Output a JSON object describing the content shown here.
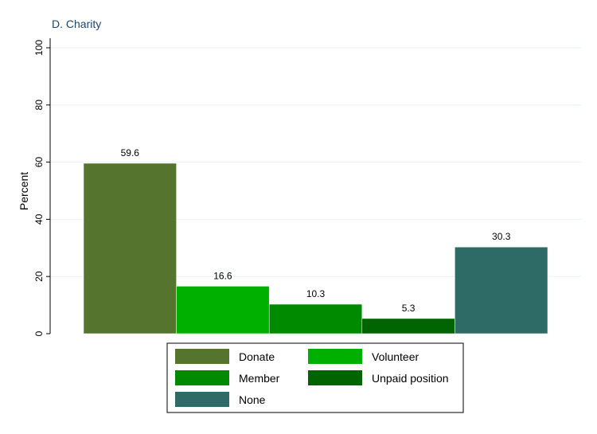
{
  "chart_data": {
    "type": "bar",
    "title": "D. Charity",
    "ylabel": "Percent",
    "xlabel": "",
    "ylim": [
      0,
      100
    ],
    "yticks": [
      0,
      20,
      40,
      60,
      80,
      100
    ],
    "grid": true,
    "legend_position": "bottom",
    "series": [
      {
        "name": "Donate",
        "value": 59.6,
        "label": "59.6",
        "color": "#55752f"
      },
      {
        "name": "Volunteer",
        "value": 16.6,
        "label": "16.6",
        "color": "#00b000"
      },
      {
        "name": "Member",
        "value": 10.3,
        "label": "10.3",
        "color": "#008a00"
      },
      {
        "name": "Unpaid position",
        "value": 5.3,
        "label": "5.3",
        "color": "#006400"
      },
      {
        "name": "None",
        "value": 30.3,
        "label": "30.3",
        "color": "#2e6b67"
      }
    ]
  }
}
